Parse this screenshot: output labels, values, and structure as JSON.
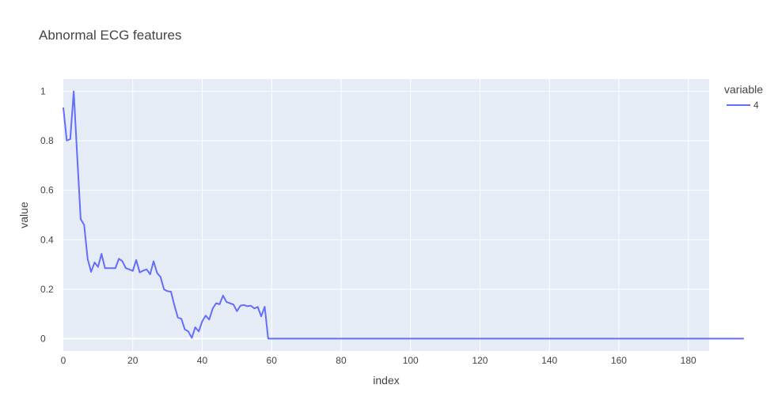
{
  "chart_data": {
    "type": "line",
    "title": "Abnormal ECG features",
    "xlabel": "index",
    "ylabel": "value",
    "xlim": [
      0,
      186
    ],
    "ylim": [
      -0.05,
      1.05
    ],
    "x_ticks": [
      0,
      20,
      40,
      60,
      80,
      100,
      120,
      140,
      160,
      180
    ],
    "y_ticks": [
      0,
      0.2,
      0.4,
      0.6,
      0.8,
      1
    ],
    "x_tick_labels": [
      "0",
      "20",
      "40",
      "60",
      "80",
      "100",
      "120",
      "140",
      "160",
      "180"
    ],
    "y_tick_labels": [
      "0",
      "0.2",
      "0.4",
      "0.6",
      "0.8",
      "1"
    ],
    "grid": true,
    "legend": {
      "title": "variable",
      "placement": "right"
    },
    "series": [
      {
        "name": "4",
        "color": "#636efa",
        "x_start": 0,
        "values": [
          0.935,
          0.801,
          0.807,
          1.0,
          0.738,
          0.483,
          0.46,
          0.323,
          0.27,
          0.308,
          0.29,
          0.343,
          0.285,
          0.285,
          0.285,
          0.285,
          0.323,
          0.313,
          0.285,
          0.28,
          0.274,
          0.318,
          0.268,
          0.275,
          0.28,
          0.26,
          0.313,
          0.266,
          0.249,
          0.199,
          0.192,
          0.19,
          0.134,
          0.085,
          0.08,
          0.037,
          0.029,
          0.003,
          0.046,
          0.029,
          0.07,
          0.093,
          0.077,
          0.121,
          0.143,
          0.139,
          0.174,
          0.148,
          0.143,
          0.138,
          0.111,
          0.133,
          0.136,
          0.131,
          0.133,
          0.122,
          0.128,
          0.09,
          0.129,
          0.0,
          0,
          0,
          0,
          0,
          0,
          0,
          0,
          0,
          0,
          0,
          0,
          0,
          0,
          0,
          0,
          0,
          0,
          0,
          0,
          0,
          0,
          0,
          0,
          0,
          0,
          0,
          0,
          0,
          0,
          0,
          0,
          0,
          0,
          0,
          0,
          0,
          0,
          0,
          0,
          0,
          0,
          0,
          0,
          0,
          0,
          0,
          0,
          0,
          0,
          0,
          0,
          0,
          0,
          0,
          0,
          0,
          0,
          0,
          0,
          0,
          0,
          0,
          0,
          0,
          0,
          0,
          0,
          0,
          0,
          0,
          0,
          0,
          0,
          0,
          0,
          0,
          0,
          0,
          0,
          0,
          0,
          0,
          0,
          0,
          0,
          0,
          0,
          0,
          0,
          0,
          0,
          0,
          0,
          0,
          0,
          0,
          0,
          0,
          0,
          0,
          0,
          0,
          0,
          0,
          0,
          0,
          0,
          0,
          0,
          0,
          0,
          0,
          0,
          0,
          0,
          0,
          0,
          0,
          0,
          0,
          0,
          0,
          0,
          0,
          0,
          0,
          0,
          0,
          0,
          0,
          0,
          0,
          0,
          0,
          0,
          0,
          0
        ]
      }
    ]
  }
}
